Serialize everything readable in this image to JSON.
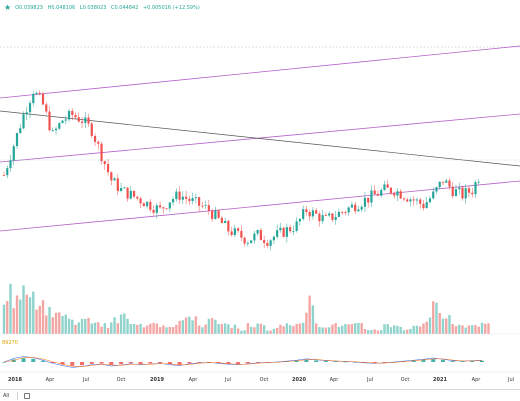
{
  "header": {
    "star_icon": "star-icon",
    "ohlc": {
      "open": "O0.039823",
      "high": "H0.048106",
      "low": "L0.038023",
      "close": "C0.044842",
      "change": "+0.005016 (+12.59%)"
    }
  },
  "footer": {
    "range_label": "All",
    "calendar_icon": "calendar-icon"
  },
  "chart_data": {
    "type": "candlestick",
    "x_tick_labels": [
      "2018",
      "Apr",
      "Jul",
      "Oct",
      "2019",
      "Apr",
      "Jul",
      "Oct",
      "2020",
      "Apr",
      "Jul",
      "Oct",
      "2021",
      "Apr",
      "Jul"
    ],
    "volume_indicator_label": "89270",
    "colors": {
      "up": "#26a69a",
      "down": "#ef5350",
      "volume_up": "#8fd3cc",
      "volume_down": "#f4a6a4",
      "channel": "#b55fc9",
      "trendline": "#555555",
      "current_level": "#8fd3cc"
    },
    "price_series": {
      "description": "approximate weekly price path shown by candles",
      "values": [
        0.044,
        0.05,
        0.056,
        0.061,
        0.058,
        0.052,
        0.055,
        0.056,
        0.055,
        0.053,
        0.048,
        0.043,
        0.041,
        0.04,
        0.039,
        0.038,
        0.037,
        0.039,
        0.04,
        0.039,
        0.038,
        0.037,
        0.035,
        0.033,
        0.032,
        0.031,
        0.032,
        0.031,
        0.032,
        0.033,
        0.034,
        0.037,
        0.036,
        0.035,
        0.036,
        0.037,
        0.038,
        0.039,
        0.04,
        0.041,
        0.041,
        0.04,
        0.039,
        0.038,
        0.04,
        0.043,
        0.041,
        0.04,
        0.041,
        0.045
      ]
    },
    "volume_series": [
      9,
      7,
      12,
      8,
      6,
      5,
      4,
      3,
      3,
      3,
      2,
      3,
      4,
      2,
      2,
      3,
      2,
      2,
      3,
      4,
      2,
      3,
      2,
      2,
      1,
      2,
      2,
      1,
      2,
      2,
      3,
      7,
      2,
      2,
      2,
      2,
      2,
      1,
      1,
      2,
      2,
      1,
      2,
      3,
      6,
      5,
      2,
      2,
      2,
      3
    ],
    "macd_series": [
      0.0,
      0.8,
      1.2,
      1.0,
      0.4,
      -0.3,
      -0.8,
      -1.2,
      -1.0,
      -0.6,
      -0.5,
      -0.9,
      -0.7,
      -0.4,
      -0.6,
      -0.5,
      -0.3,
      -0.6,
      -0.8,
      -0.4,
      -0.2,
      -0.1,
      -0.3,
      -0.5,
      -0.6,
      -0.4,
      -0.2,
      -0.1,
      0.0,
      0.2,
      0.4,
      0.7,
      0.5,
      0.3,
      0.2,
      0.1,
      0.0,
      -0.2,
      -0.3,
      -0.2,
      0.0,
      0.2,
      0.4,
      0.6,
      0.9,
      0.6,
      0.3,
      0.2,
      0.3,
      0.4
    ]
  }
}
